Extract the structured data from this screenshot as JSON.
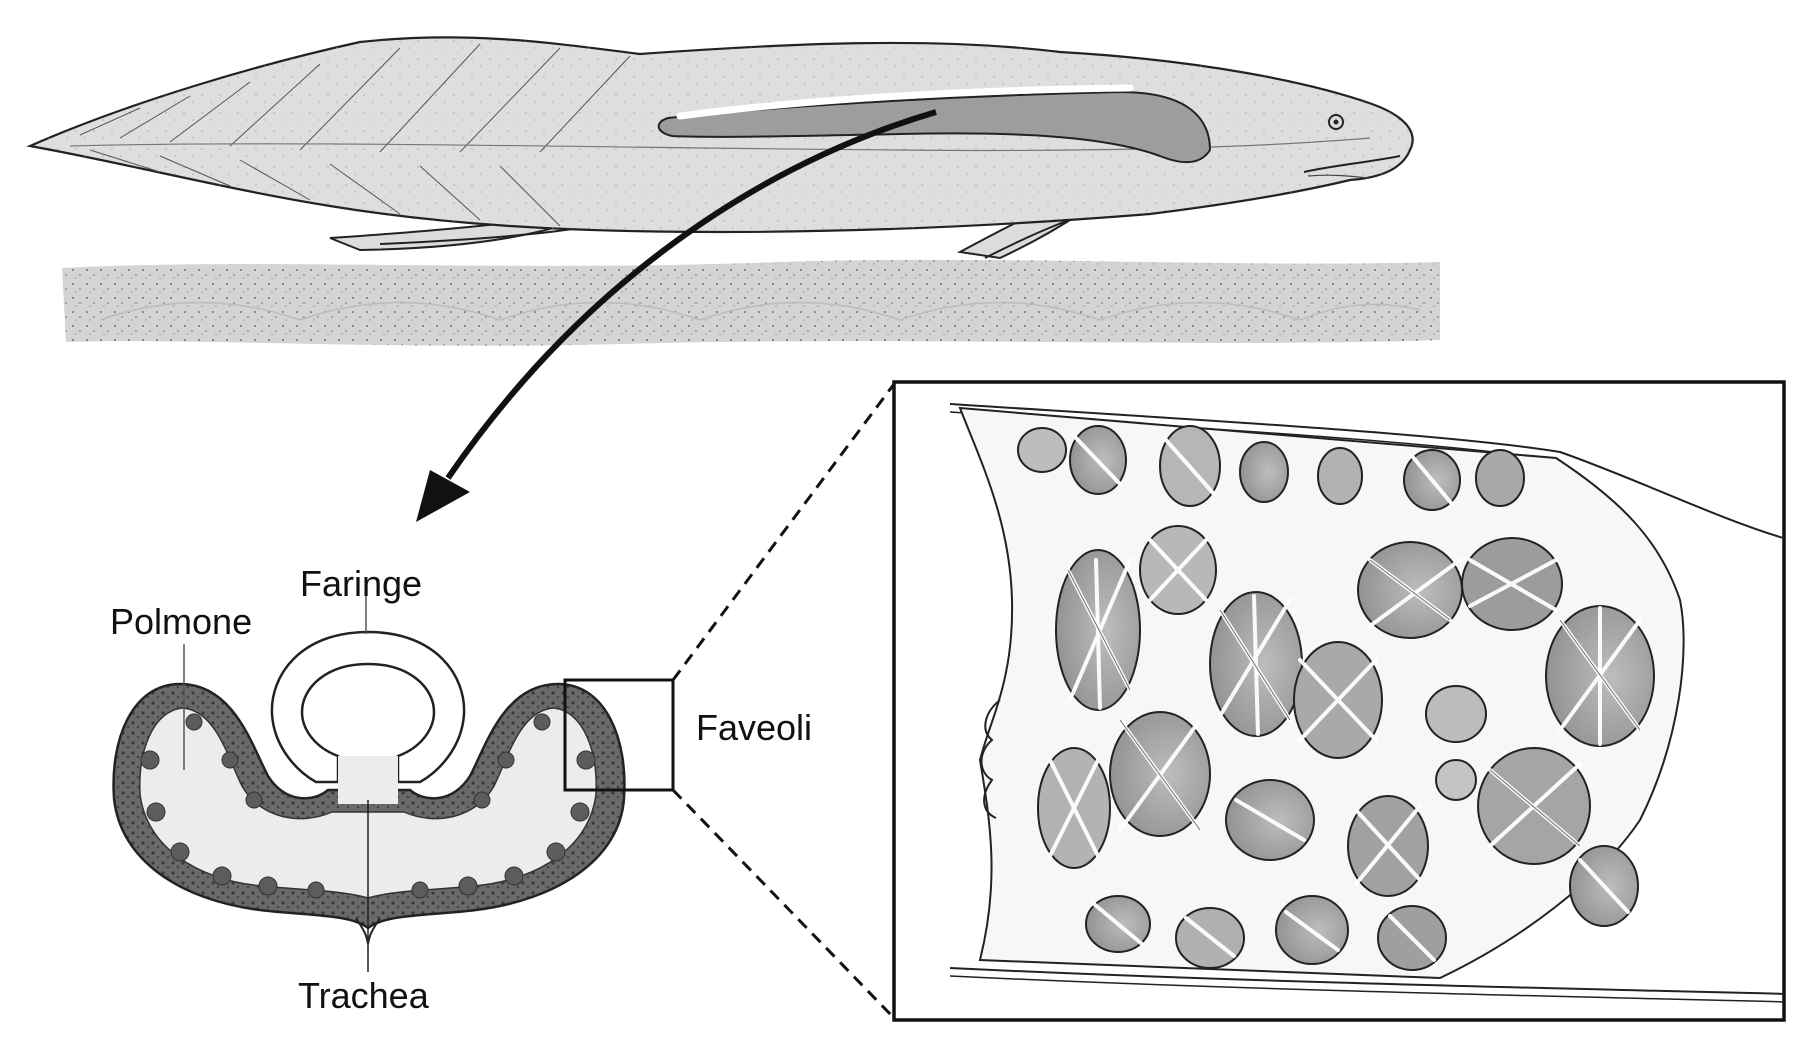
{
  "labels": {
    "lung": "Polmone",
    "pharynx": "Faringe",
    "alveoli": "Faveoli",
    "trachea": "Trachea"
  },
  "colors": {
    "fish_body": "#dcdcdc",
    "fish_outline": "#222222",
    "lung_highlight": "#9a9a9a",
    "sediment": "#d2d2d2",
    "lung_tissue": "#5a5a5a",
    "lung_lumen": "#ececec",
    "alveolus_fill": "#a8a8a8",
    "background": "#ffffff"
  }
}
